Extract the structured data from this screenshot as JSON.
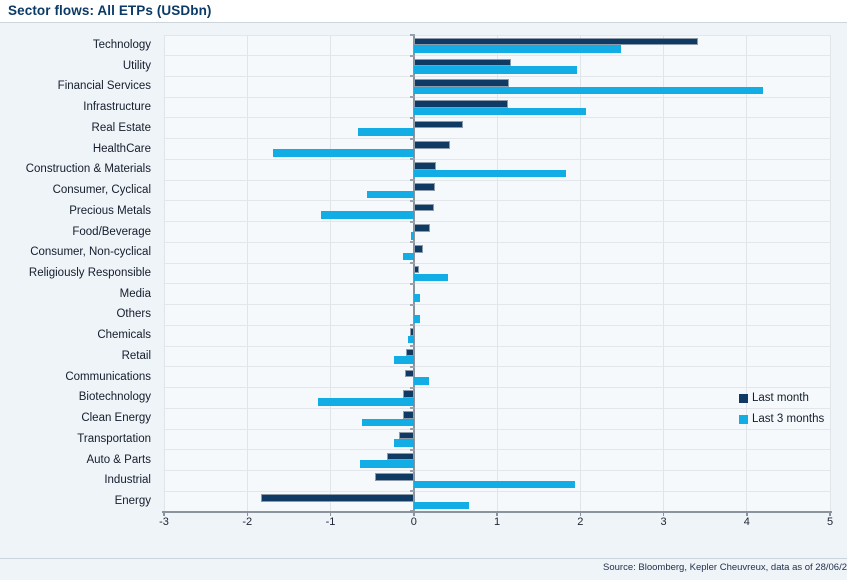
{
  "header": {
    "title": "Sector flows: All ETPs (USDbn)"
  },
  "footer": {
    "source": "Source: Bloomberg, Kepler Cheuvreux, data as of 28/06/2"
  },
  "colors": {
    "last_month": "#0f3a64",
    "last_3_months": "#13ade6",
    "title": "#0c3a66",
    "axis": "#8b939c",
    "gridline": "#e3e7ec",
    "plot_background": "#f5f9fc",
    "page_background": "#eff4f9"
  },
  "chart_data": {
    "type": "bar",
    "orientation": "horizontal",
    "title": "Sector flows: All ETPs (USDbn)",
    "xlabel": "",
    "ylabel": "",
    "xlim": [
      -3,
      5
    ],
    "xticks": [
      -3,
      -2,
      -1,
      0,
      1,
      2,
      3,
      4,
      5
    ],
    "grid": true,
    "legend_position": "right-middle",
    "categories": [
      "Technology",
      "Utility",
      "Financial Services",
      "Infrastructure",
      "Real Estate",
      "HealthCare",
      "Construction & Materials",
      "Consumer, Cyclical",
      "Precious Metals",
      "Food/Beverage",
      "Consumer, Non-cyclical",
      "Religiously Responsible",
      "Media",
      "Others",
      "Chemicals",
      "Retail",
      "Communications",
      "Biotechnology",
      "Clean Energy",
      "Transportation",
      "Auto & Parts",
      "Industrial",
      "Energy"
    ],
    "series": [
      {
        "name": "Last month",
        "color": "#0f3a64",
        "values": [
          3.42,
          1.17,
          1.14,
          1.13,
          0.59,
          0.44,
          0.27,
          0.26,
          0.24,
          0.2,
          0.11,
          0.06,
          0,
          0,
          -0.04,
          -0.09,
          -0.11,
          -0.13,
          -0.13,
          -0.18,
          -0.32,
          -0.47,
          -1.83
        ]
      },
      {
        "name": "Last 3 months",
        "color": "#13ade6",
        "values": [
          2.49,
          1.96,
          4.2,
          2.07,
          -0.67,
          -1.69,
          1.83,
          -0.56,
          -1.12,
          -0.03,
          -0.13,
          0.41,
          0.07,
          0.07,
          -0.07,
          -0.24,
          0.18,
          -1.15,
          -0.62,
          -0.24,
          -0.65,
          1.94,
          0.66
        ]
      }
    ]
  }
}
